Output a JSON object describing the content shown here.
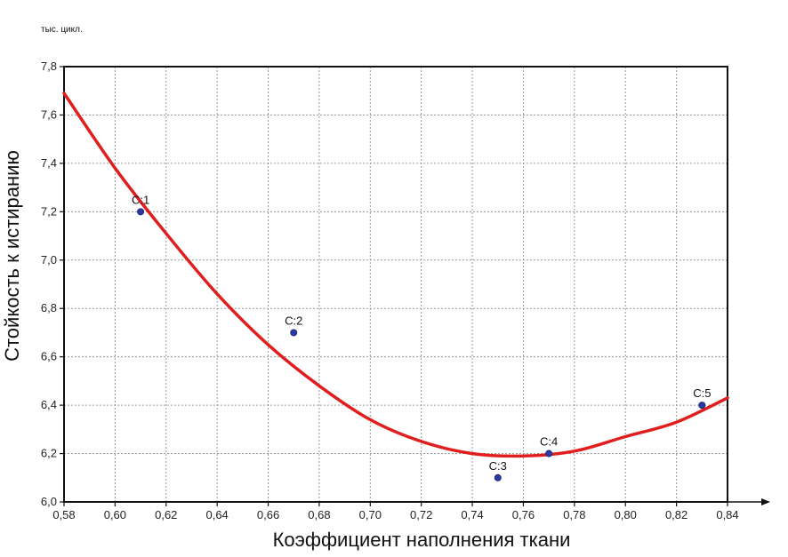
{
  "chart_data": {
    "type": "scatter",
    "unit_label": "тыс. цикл.",
    "xlabel": "Коэффициент наполнения ткани",
    "ylabel": "Стойкость к истиранию",
    "xlim": [
      0.58,
      0.84
    ],
    "ylim": [
      6.0,
      7.8
    ],
    "grid": true,
    "x_ticks": [
      0.58,
      0.6,
      0.62,
      0.64,
      0.66,
      0.68,
      0.7,
      0.72,
      0.74,
      0.76,
      0.78,
      0.8,
      0.82,
      0.84
    ],
    "x_tick_labels": [
      "0,58",
      "0,60",
      "0,62",
      "0,64",
      "0,66",
      "0,68",
      "0,70",
      "0,72",
      "0,74",
      "0,76",
      "0,78",
      "0,80",
      "0,82",
      "0,84"
    ],
    "y_ticks": [
      6.0,
      6.2,
      6.4,
      6.6,
      6.8,
      7.0,
      7.2,
      7.4,
      7.6,
      7.8
    ],
    "y_tick_labels": [
      "6,0",
      "6,2",
      "6,4",
      "6,6",
      "6,8",
      "7,0",
      "7,2",
      "7,4",
      "7,6",
      "7,8"
    ],
    "points": [
      {
        "label": "C:1",
        "x": 0.61,
        "y": 7.2
      },
      {
        "label": "C:2",
        "x": 0.67,
        "y": 6.7
      },
      {
        "label": "C:3",
        "x": 0.75,
        "y": 6.1
      },
      {
        "label": "C:4",
        "x": 0.77,
        "y": 6.2
      },
      {
        "label": "C:5",
        "x": 0.83,
        "y": 6.4
      }
    ],
    "fit_curve": {
      "type": "quadratic",
      "x": [
        0.58,
        0.6,
        0.62,
        0.64,
        0.66,
        0.68,
        0.7,
        0.72,
        0.74,
        0.76,
        0.78,
        0.8,
        0.82,
        0.84
      ],
      "y": [
        7.69,
        7.38,
        7.11,
        6.86,
        6.65,
        6.48,
        6.34,
        6.25,
        6.2,
        6.19,
        6.21,
        6.27,
        6.33,
        6.43
      ]
    },
    "colors": {
      "curve": "#e01e1e",
      "point": "#2a3a9e",
      "grid": "#9a9a9a",
      "axis": "#111111"
    }
  }
}
